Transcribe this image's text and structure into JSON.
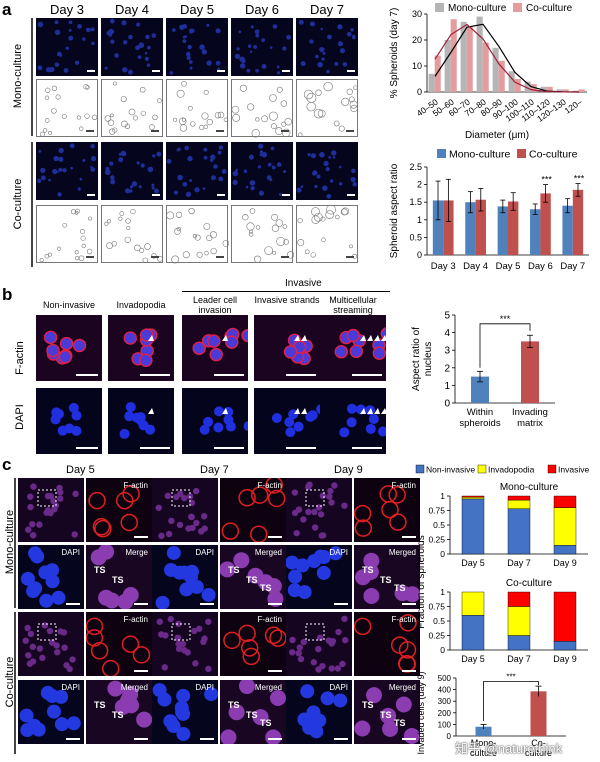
{
  "panels": {
    "a": {
      "letter": "a",
      "days": [
        "Day 3",
        "Day 4",
        "Day 5",
        "Day 6",
        "Day 7"
      ],
      "rows": [
        "Mono-culture",
        "Co-culture"
      ]
    },
    "b": {
      "letter": "b",
      "invasive_header": "Invasive",
      "columns": [
        "Non-invasive",
        "Invadopodia",
        "Leader cell invasion",
        "Invasive strands",
        "Multicellular streaming"
      ],
      "row_labels": [
        "F-actin",
        "DAPI"
      ]
    },
    "c": {
      "letter": "c",
      "days": [
        "Day 5",
        "Day 7",
        "Day 9"
      ],
      "rows": [
        "Mono-culture",
        "Co-culture"
      ],
      "tile_labels": {
        "factin": "F-actin",
        "dapi": "DAPI",
        "merge": "Merge",
        "merged": "Merged",
        "ts": "TS"
      }
    }
  },
  "watermark": "知乎 @naturethink",
  "chart_data": [
    {
      "id": "a-histogram",
      "type": "bar",
      "ylabel": "% Spheroids (day 7)",
      "xlabel": "Diameter (μm)",
      "categories": [
        "40–50",
        "50–60",
        "60–70",
        "70–80",
        "80–90",
        "90–100",
        "100–110",
        "110–120",
        "120–130",
        "120–"
      ],
      "ylim": [
        0,
        30
      ],
      "yticks": [
        0,
        10,
        20,
        30
      ],
      "legend_position": "top",
      "series": [
        {
          "name": "Mono-culture",
          "color": "#b5b5b5",
          "values": [
            7,
            20,
            27,
            29,
            17,
            8,
            4,
            2,
            1,
            0.5
          ]
        },
        {
          "name": "Co-culture",
          "color": "#e59c9c",
          "values": [
            14,
            28,
            25,
            19,
            12,
            5,
            3,
            2,
            1,
            1
          ]
        }
      ]
    },
    {
      "id": "a-aspect",
      "type": "bar",
      "ylabel": "Spheroid aspect ratio",
      "categories": [
        "Day 3",
        "Day 4",
        "Day 5",
        "Day 6",
        "Day 7"
      ],
      "ylim": [
        0,
        2.5
      ],
      "yticks": [
        0,
        0.5,
        1,
        1.5,
        2,
        2.5
      ],
      "legend_position": "top",
      "significance": [
        "",
        "",
        "",
        "***",
        "***"
      ],
      "series": [
        {
          "name": "Mono-culture",
          "color": "#4f81bd",
          "values": [
            1.55,
            1.5,
            1.38,
            1.3,
            1.4
          ],
          "errors": [
            0.55,
            0.3,
            0.18,
            0.15,
            0.2
          ]
        },
        {
          "name": "Co-culture",
          "color": "#c0504d",
          "values": [
            1.55,
            1.57,
            1.52,
            1.75,
            1.85
          ],
          "errors": [
            0.6,
            0.32,
            0.25,
            0.25,
            0.18
          ]
        }
      ]
    },
    {
      "id": "b-nucleus",
      "type": "bar",
      "ylabel": "Aspect ratio of nucleus",
      "categories": [
        "Within spheroids",
        "Invading matrix"
      ],
      "ylim": [
        0,
        5
      ],
      "yticks": [
        0,
        1,
        2,
        3,
        4,
        5
      ],
      "significance": "***",
      "values": [
        1.5,
        3.5
      ],
      "errors": [
        0.3,
        0.35
      ],
      "colors": [
        "#4f81bd",
        "#c0504d"
      ]
    },
    {
      "id": "c-fraction",
      "type": "bar",
      "stacked": true,
      "ylabel": "Fraction of spheroids",
      "legend": [
        "Non-invasive",
        "Invadopodia",
        "Invasive"
      ],
      "legend_colors": [
        "#4472c4",
        "#ffff00",
        "#ff0000"
      ],
      "legend_position": "top",
      "ylim": [
        0,
        1
      ],
      "yticks": [
        0,
        0.25,
        0.5,
        0.75,
        1
      ],
      "subplots": [
        {
          "title": "Mono-culture",
          "categories": [
            "Day 5",
            "Day 7",
            "Day 9"
          ],
          "series": [
            {
              "name": "Non-invasive",
              "values": [
                0.95,
                0.78,
                0.15
              ]
            },
            {
              "name": "Invadopodia",
              "values": [
                0.03,
                0.15,
                0.65
              ]
            },
            {
              "name": "Invasive",
              "values": [
                0.02,
                0.07,
                0.2
              ]
            }
          ]
        },
        {
          "title": "Co-culture",
          "categories": [
            "Day 5",
            "Day 7",
            "Day 9"
          ],
          "series": [
            {
              "name": "Non-invasive",
              "values": [
                0.6,
                0.25,
                0.15
              ]
            },
            {
              "name": "Invadopodia",
              "values": [
                0.4,
                0.5,
                0.0
              ]
            },
            {
              "name": "Invasive",
              "values": [
                0.0,
                0.25,
                0.85
              ]
            }
          ]
        }
      ]
    },
    {
      "id": "c-invaded",
      "type": "bar",
      "ylabel": "Invaded cells (day 9)",
      "categories": [
        "Mono-culture",
        "Co-culture"
      ],
      "ylim": [
        0,
        500
      ],
      "yticks": [
        0,
        100,
        200,
        300,
        400,
        500
      ],
      "significance": "***",
      "values": [
        80,
        385
      ],
      "errors": [
        20,
        45
      ],
      "colors": [
        "#4f81bd",
        "#c0504d"
      ]
    }
  ]
}
